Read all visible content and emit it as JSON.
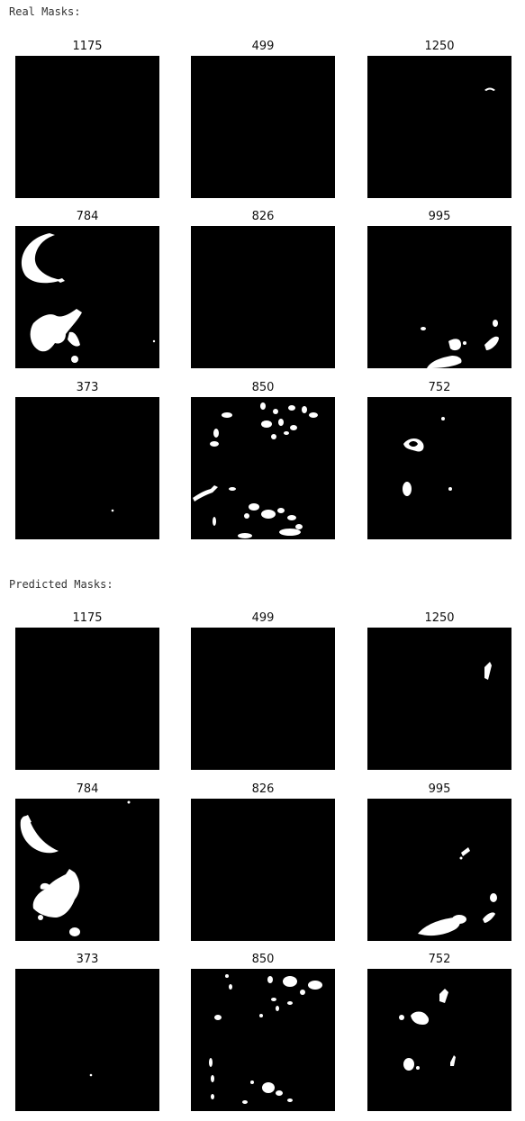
{
  "sections": [
    {
      "label": "Real Masks:",
      "panels": [
        {
          "title": "1175"
        },
        {
          "title": "499"
        },
        {
          "title": "1250"
        },
        {
          "title": "784"
        },
        {
          "title": "826"
        },
        {
          "title": "995"
        },
        {
          "title": "373"
        },
        {
          "title": "850"
        },
        {
          "title": "752"
        }
      ]
    },
    {
      "label": "Predicted Masks:",
      "panels": [
        {
          "title": "1175"
        },
        {
          "title": "499"
        },
        {
          "title": "1250"
        },
        {
          "title": "784"
        },
        {
          "title": "826"
        },
        {
          "title": "995"
        },
        {
          "title": "373"
        },
        {
          "title": "850"
        },
        {
          "title": "752"
        }
      ]
    }
  ],
  "colors": {
    "background": "#ffffff",
    "mask_bg": "#000000",
    "mask_fg": "#ffffff"
  }
}
